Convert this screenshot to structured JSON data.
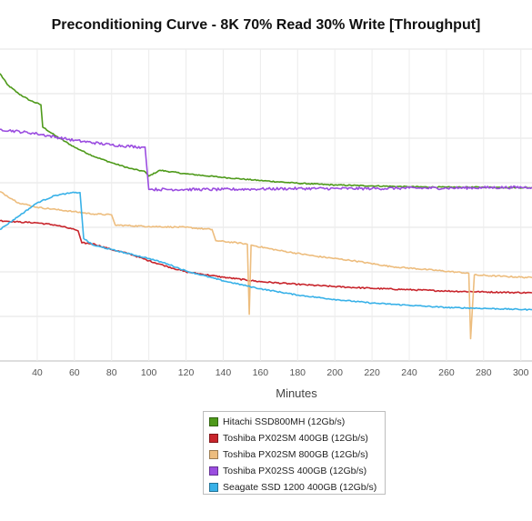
{
  "chart_data": {
    "type": "line",
    "title": "Preconditioning Curve - 8K 70% Read 30% Write [Throughput]",
    "xlabel": "Minutes",
    "ylabel": "",
    "x_ticks": [
      40,
      60,
      80,
      100,
      120,
      140,
      160,
      180,
      200,
      220,
      240,
      260,
      280,
      300
    ],
    "xlim": [
      20,
      306
    ],
    "ylim": [
      0,
      7
    ],
    "grid": true,
    "legend_position": "bottom-center",
    "series": [
      {
        "name": "Hitachi SSD800MH (12Gb/s)",
        "color": "#4e9a1a",
        "points": [
          [
            20,
            6.45
          ],
          [
            24,
            6.2
          ],
          [
            30,
            6.0
          ],
          [
            36,
            5.85
          ],
          [
            42,
            5.75
          ],
          [
            43,
            5.25
          ],
          [
            50,
            5.05
          ],
          [
            60,
            4.8
          ],
          [
            70,
            4.6
          ],
          [
            80,
            4.45
          ],
          [
            90,
            4.32
          ],
          [
            98,
            4.25
          ],
          [
            100,
            4.15
          ],
          [
            106,
            4.28
          ],
          [
            120,
            4.2
          ],
          [
            140,
            4.12
          ],
          [
            160,
            4.05
          ],
          [
            180,
            3.99
          ],
          [
            200,
            3.95
          ],
          [
            220,
            3.93
          ],
          [
            240,
            3.91
          ],
          [
            260,
            3.9
          ],
          [
            280,
            3.9
          ],
          [
            306,
            3.89
          ]
        ]
      },
      {
        "name": "Toshiba PX02SM 400GB (12Gb/s)",
        "color": "#c8252c",
        "points": [
          [
            20,
            3.15
          ],
          [
            30,
            3.12
          ],
          [
            40,
            3.1
          ],
          [
            50,
            3.05
          ],
          [
            60,
            2.95
          ],
          [
            62,
            2.92
          ],
          [
            64,
            2.65
          ],
          [
            70,
            2.63
          ],
          [
            80,
            2.5
          ],
          [
            90,
            2.4
          ],
          [
            100,
            2.25
          ],
          [
            110,
            2.12
          ],
          [
            120,
            2.0
          ],
          [
            140,
            1.88
          ],
          [
            160,
            1.78
          ],
          [
            180,
            1.72
          ],
          [
            200,
            1.67
          ],
          [
            220,
            1.63
          ],
          [
            240,
            1.6
          ],
          [
            260,
            1.57
          ],
          [
            280,
            1.55
          ],
          [
            306,
            1.53
          ]
        ]
      },
      {
        "name": "Toshiba PX02SM 800GB (12Gb/s)",
        "color": "#edbd7e",
        "points": [
          [
            20,
            3.8
          ],
          [
            30,
            3.55
          ],
          [
            40,
            3.45
          ],
          [
            50,
            3.4
          ],
          [
            60,
            3.35
          ],
          [
            70,
            3.3
          ],
          [
            80,
            3.28
          ],
          [
            82,
            3.05
          ],
          [
            100,
            3.02
          ],
          [
            120,
            3.0
          ],
          [
            134,
            2.95
          ],
          [
            136,
            2.7
          ],
          [
            150,
            2.64
          ],
          [
            153,
            2.62
          ],
          [
            154,
            1.05
          ],
          [
            155,
            2.6
          ],
          [
            170,
            2.48
          ],
          [
            190,
            2.35
          ],
          [
            210,
            2.25
          ],
          [
            230,
            2.12
          ],
          [
            250,
            2.05
          ],
          [
            272,
            1.97
          ],
          [
            273,
            0.5
          ],
          [
            275,
            1.93
          ],
          [
            290,
            1.9
          ],
          [
            306,
            1.87
          ]
        ]
      },
      {
        "name": "Toshiba PX02SS 400GB (12Gb/s)",
        "color": "#9b4de0",
        "points": [
          [
            20,
            5.2
          ],
          [
            40,
            5.1
          ],
          [
            60,
            4.95
          ],
          [
            80,
            4.85
          ],
          [
            96,
            4.8
          ],
          [
            98,
            4.8
          ],
          [
            100,
            3.85
          ],
          [
            101,
            3.85
          ],
          [
            120,
            3.85
          ],
          [
            140,
            3.85
          ],
          [
            160,
            3.86
          ],
          [
            180,
            3.87
          ],
          [
            200,
            3.87
          ],
          [
            220,
            3.87
          ],
          [
            240,
            3.88
          ],
          [
            260,
            3.88
          ],
          [
            280,
            3.89
          ],
          [
            306,
            3.9
          ]
        ]
      },
      {
        "name": "Seagate SSD 1200 400GB (12Gb/s)",
        "color": "#38b1e8",
        "points": [
          [
            20,
            2.95
          ],
          [
            30,
            3.25
          ],
          [
            40,
            3.55
          ],
          [
            50,
            3.72
          ],
          [
            60,
            3.78
          ],
          [
            63,
            3.78
          ],
          [
            65,
            2.75
          ],
          [
            70,
            2.6
          ],
          [
            80,
            2.5
          ],
          [
            90,
            2.4
          ],
          [
            100,
            2.3
          ],
          [
            110,
            2.18
          ],
          [
            120,
            2.02
          ],
          [
            140,
            1.8
          ],
          [
            160,
            1.62
          ],
          [
            180,
            1.48
          ],
          [
            200,
            1.38
          ],
          [
            220,
            1.3
          ],
          [
            240,
            1.25
          ],
          [
            260,
            1.2
          ],
          [
            280,
            1.18
          ],
          [
            306,
            1.15
          ]
        ]
      }
    ]
  }
}
